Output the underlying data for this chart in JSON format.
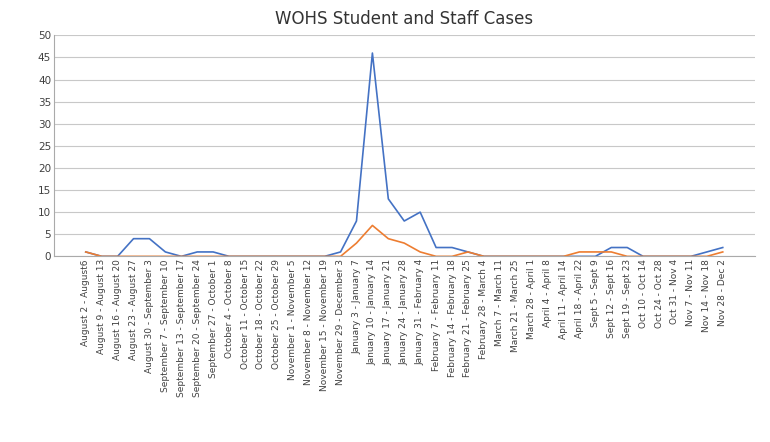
{
  "title": "WOHS Student and Staff Cases",
  "labels": [
    "August 2 - August6",
    "August 9 - August 13",
    "August 16 - August 20",
    "August 23 - August 27",
    "August 30 - September 3",
    "September 7 - September 10",
    "September 13 - September 17",
    "September 20 - September 24",
    "September 27 - October 1",
    "October 4 - October 8",
    "October 11 - October 15",
    "October 18 - October 22",
    "October 25 - October 29",
    "November 1 - November 5",
    "November 8 - November 12",
    "November 15 - November 19",
    "November 29 - December 3",
    "January 3 - January 7",
    "January 10 - January 14",
    "January 17 - January 21",
    "January 24 - January 28",
    "January 31 - February 4",
    "February 7 - February 11",
    "February 14 - February 18",
    "February 21 - February 25",
    "February 28 - March 4",
    "March 7 - March 11",
    "March 21 - March 25",
    "March 28 - April 1",
    "April 4 - April 8",
    "April 11 - April 14",
    "April 18 - April 22",
    "Sept 5 - Sept 9",
    "Sept 12 - Sept 16",
    "Sept 19 - Sept 23",
    "Oct 10 - Oct 14",
    "Oct 24 - Oct 28",
    "Oct 31 - Nov 4",
    "Nov 7 - Nov 11",
    "Nov 14 - Nov 18",
    "Nov 28 - Dec 2"
  ],
  "students": [
    1,
    0,
    0,
    4,
    4,
    1,
    0,
    1,
    1,
    0,
    0,
    0,
    0,
    0,
    0,
    0,
    1,
    8,
    46,
    13,
    8,
    10,
    2,
    2,
    1,
    0,
    0,
    0,
    0,
    0,
    0,
    0,
    0,
    2,
    2,
    0,
    0,
    0,
    0,
    1,
    2
  ],
  "staff": [
    1,
    0,
    0,
    0,
    0,
    0,
    0,
    0,
    0,
    0,
    0,
    0,
    0,
    0,
    0,
    0,
    0,
    3,
    7,
    4,
    3,
    1,
    0,
    0,
    1,
    0,
    0,
    0,
    0,
    0,
    0,
    1,
    1,
    1,
    0,
    0,
    0,
    0,
    0,
    0,
    1
  ],
  "student_color": "#4472c4",
  "staff_color": "#ed7d31",
  "ylim": [
    0,
    50
  ],
  "yticks": [
    0,
    5,
    10,
    15,
    20,
    25,
    30,
    35,
    40,
    45,
    50
  ],
  "title_fontsize": 12,
  "tick_fontsize": 6.5,
  "background_color": "#ffffff",
  "grid_color": "#c8c8c8",
  "spine_color": "#aaaaaa"
}
